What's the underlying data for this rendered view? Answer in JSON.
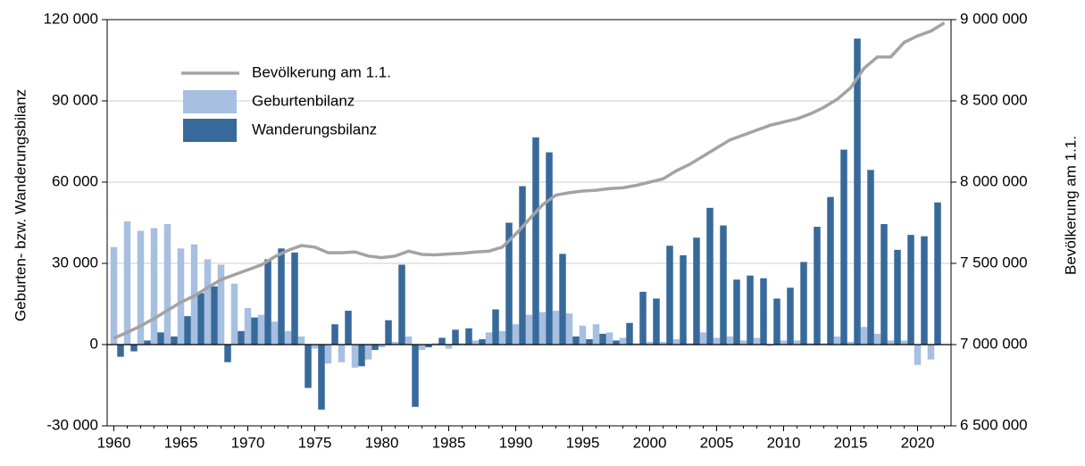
{
  "chart_data": {
    "type": "bar",
    "ylabel": "Geburten- bzw. Wanderungsbilanz",
    "y2label": "Bevölkerung am 1.1.",
    "x": [
      1960,
      1961,
      1962,
      1963,
      1964,
      1965,
      1966,
      1967,
      1968,
      1969,
      1970,
      1971,
      1972,
      1973,
      1974,
      1975,
      1976,
      1977,
      1978,
      1979,
      1980,
      1981,
      1982,
      1983,
      1984,
      1985,
      1986,
      1987,
      1988,
      1989,
      1990,
      1991,
      1992,
      1993,
      1994,
      1995,
      1996,
      1997,
      1998,
      1999,
      2000,
      2001,
      2002,
      2003,
      2004,
      2005,
      2006,
      2007,
      2008,
      2009,
      2010,
      2011,
      2012,
      2013,
      2014,
      2015,
      2016,
      2017,
      2018,
      2019,
      2020,
      2021,
      2022
    ],
    "xlim": [
      1959.5,
      2022.5
    ],
    "xticks": [
      1960,
      1965,
      1970,
      1975,
      1980,
      1985,
      1990,
      1995,
      2000,
      2005,
      2010,
      2015,
      2020
    ],
    "ylim": [
      -30000,
      120000
    ],
    "yticks": [
      {
        "value": -30000,
        "label": "-30 000"
      },
      0,
      {
        "value": 30000,
        "label": "30 000"
      },
      {
        "value": 60000,
        "label": "60 000"
      },
      {
        "value": 90000,
        "label": "90 000"
      },
      {
        "value": 120000,
        "label": "120 000"
      }
    ],
    "y2lim": [
      6500000,
      9000000
    ],
    "y2ticks": [
      {
        "value": 6500000,
        "label": "6 500 000"
      },
      {
        "value": 7000000,
        "label": "7 000 000"
      },
      {
        "value": 7500000,
        "label": "7 500 000"
      },
      {
        "value": 8000000,
        "label": "8 000 000"
      },
      {
        "value": 8500000,
        "label": "8 500 000"
      },
      {
        "value": 9000000,
        "label": "9 000 000"
      }
    ],
    "grid": true,
    "legend": "upper left",
    "series": [
      {
        "name": "Bevölkerung am 1.1.",
        "type": "line",
        "axis": "y2",
        "color": "#a3a3a3",
        "values": [
          7040000,
          7075000,
          7115000,
          7160000,
          7210000,
          7260000,
          7300000,
          7350000,
          7400000,
          7430000,
          7460000,
          7490000,
          7540000,
          7580000,
          7610000,
          7600000,
          7565000,
          7565000,
          7570000,
          7545000,
          7535000,
          7545000,
          7575000,
          7555000,
          7552000,
          7558000,
          7562000,
          7570000,
          7575000,
          7600000,
          7680000,
          7770000,
          7860000,
          7920000,
          7935000,
          7945000,
          7950000,
          7960000,
          7965000,
          7980000,
          8000000,
          8020000,
          8070000,
          8110000,
          8160000,
          8210000,
          8260000,
          8290000,
          8320000,
          8350000,
          8370000,
          8390000,
          8420000,
          8460000,
          8510000,
          8580000,
          8700000,
          8770000,
          8770000,
          8860000,
          8900000,
          8930000,
          8980000
        ]
      },
      {
        "name": "Geburtenbilanz",
        "color": "#a7bfe0",
        "values": [
          36000,
          45500,
          42000,
          43000,
          44500,
          35500,
          37000,
          31500,
          29500,
          22500,
          13500,
          11000,
          8500,
          5000,
          3000,
          -1500,
          -7000,
          -6500,
          -8500,
          -5500,
          -1000,
          1000,
          3000,
          -2000,
          500,
          -1500,
          500,
          1500,
          4500,
          5000,
          7500,
          11000,
          12000,
          12500,
          11500,
          7000,
          7500,
          4500,
          2500,
          500,
          1000,
          1000,
          2000,
          500,
          4500,
          2500,
          3000,
          1500,
          2500,
          -500,
          1500,
          1500,
          500,
          500,
          3000,
          1000,
          6500,
          4000,
          1500,
          1500,
          -7500,
          -5500,
          null
        ]
      },
      {
        "name": "Wanderungsbilanz",
        "color": "#376a9a",
        "values": [
          -4500,
          -2500,
          1500,
          4500,
          3000,
          10500,
          19000,
          21500,
          -6500,
          5000,
          10000,
          31500,
          35500,
          34000,
          -16000,
          -24000,
          7500,
          12500,
          -8000,
          -2000,
          9000,
          29500,
          -23000,
          -1000,
          2500,
          5500,
          6000,
          2000,
          13000,
          45000,
          58500,
          76500,
          71000,
          33500,
          3000,
          2000,
          4000,
          1500,
          8000,
          19500,
          17000,
          36500,
          33000,
          39500,
          50500,
          44000,
          24000,
          25500,
          24500,
          17000,
          21000,
          30500,
          43500,
          54500,
          72000,
          113000,
          64500,
          44500,
          35000,
          40500,
          40000,
          52500,
          null
        ]
      }
    ]
  }
}
